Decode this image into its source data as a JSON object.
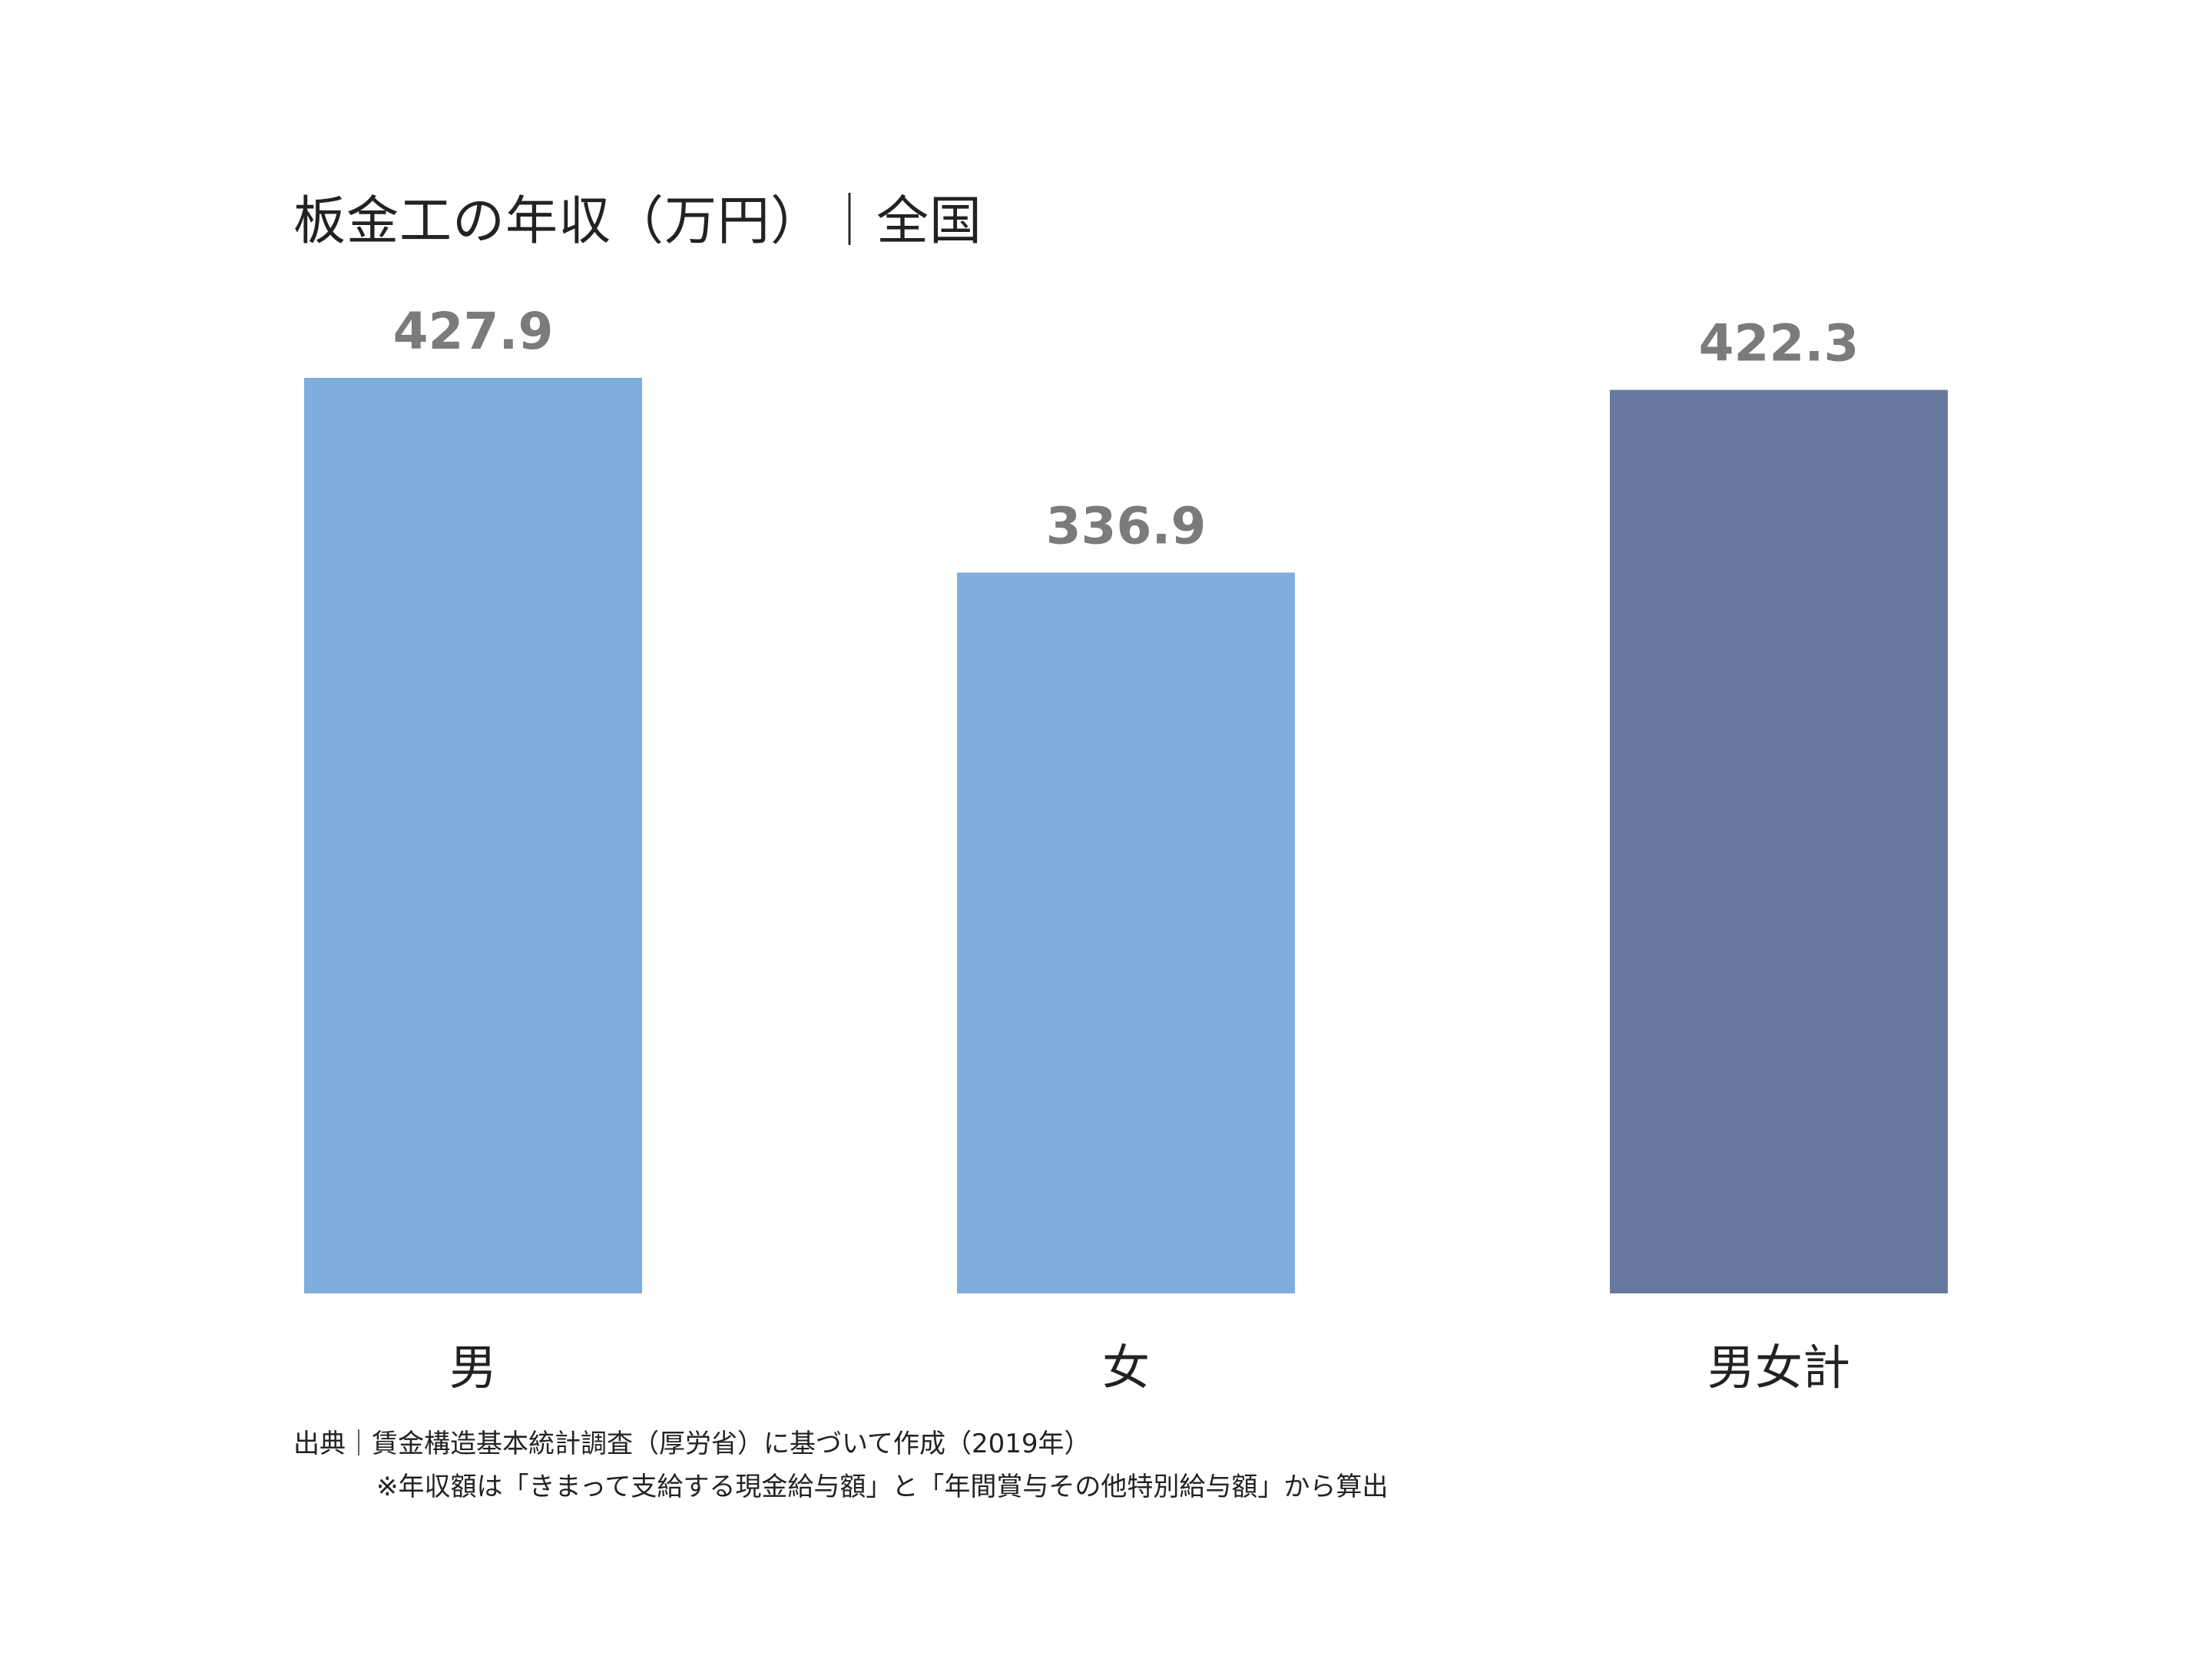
{
  "chart_data": {
    "type": "bar",
    "title": "板金工の年収（万円）｜全国",
    "categories": [
      "男",
      "女",
      "男女計"
    ],
    "values": [
      427.9,
      336.9,
      422.3
    ],
    "value_labels": [
      "427.9",
      "336.9",
      "422.3"
    ],
    "colors": [
      "#7eaedd",
      "#7eaedd",
      "#67799f"
    ],
    "ylim": [
      0,
      427.9
    ],
    "grid": false,
    "legend": "none"
  },
  "footer": {
    "source": "出典｜賃金構造基本統計調査（厚労省）に基づいて作成（2019年）",
    "note": "※年収額は「きまって支給する現金給与額」と「年間賞与その他特別給与額」から算出"
  }
}
